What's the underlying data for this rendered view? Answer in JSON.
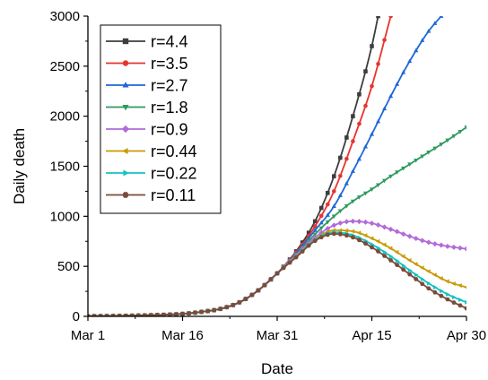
{
  "chart_data": {
    "type": "line",
    "xlabel": "Date",
    "ylabel": "Daily death",
    "x_tick_labels": [
      {
        "value": "2020-03-01",
        "label": "Mar 1"
      },
      {
        "value": "2020-03-16",
        "label": "Mar 16"
      },
      {
        "value": "2020-03-31",
        "label": "Mar 31"
      },
      {
        "value": "2020-04-15",
        "label": "Apr 15"
      },
      {
        "value": "2020-04-30",
        "label": "Apr 30"
      }
    ],
    "xlim": [
      "2020-03-01",
      "2020-04-30"
    ],
    "y_ticks": [
      0,
      500,
      1000,
      1500,
      2000,
      2500,
      3000
    ],
    "ylim": [
      0,
      3000
    ],
    "legend_position": "top-left",
    "grid": false,
    "shared_history": [
      {
        "x": "2020-03-01",
        "y": 2
      },
      {
        "x": "2020-03-06",
        "y": 5
      },
      {
        "x": "2020-03-11",
        "y": 12
      },
      {
        "x": "2020-03-16",
        "y": 25
      },
      {
        "x": "2020-03-19",
        "y": 45
      },
      {
        "x": "2020-03-22",
        "y": 75
      },
      {
        "x": "2020-03-25",
        "y": 140
      },
      {
        "x": "2020-03-28",
        "y": 260
      },
      {
        "x": "2020-03-31",
        "y": 430
      }
    ],
    "series": [
      {
        "name": "r=4.4",
        "color": "#3d3d3d",
        "marker": "square",
        "points": [
          {
            "x": "2020-04-03",
            "y": 650
          },
          {
            "x": "2020-04-06",
            "y": 950
          },
          {
            "x": "2020-04-09",
            "y": 1400
          },
          {
            "x": "2020-04-12",
            "y": 2000
          },
          {
            "x": "2020-04-15",
            "y": 2700
          },
          {
            "x": "2020-04-16",
            "y": 3000
          }
        ]
      },
      {
        "name": "r=3.5",
        "color": "#e8332e",
        "marker": "circle",
        "points": [
          {
            "x": "2020-04-03",
            "y": 640
          },
          {
            "x": "2020-04-06",
            "y": 900
          },
          {
            "x": "2020-04-09",
            "y": 1250
          },
          {
            "x": "2020-04-12",
            "y": 1750
          },
          {
            "x": "2020-04-15",
            "y": 2300
          },
          {
            "x": "2020-04-18",
            "y": 3000
          }
        ]
      },
      {
        "name": "r=2.7",
        "color": "#1f67d6",
        "marker": "triangle-up",
        "points": [
          {
            "x": "2020-04-03",
            "y": 630
          },
          {
            "x": "2020-04-06",
            "y": 860
          },
          {
            "x": "2020-04-09",
            "y": 1100
          },
          {
            "x": "2020-04-12",
            "y": 1450
          },
          {
            "x": "2020-04-15",
            "y": 1820
          },
          {
            "x": "2020-04-18",
            "y": 2200
          },
          {
            "x": "2020-04-21",
            "y": 2550
          },
          {
            "x": "2020-04-24",
            "y": 2850
          },
          {
            "x": "2020-04-26",
            "y": 3000
          }
        ]
      },
      {
        "name": "r=1.8",
        "color": "#2e9a5e",
        "marker": "triangle-down",
        "points": [
          {
            "x": "2020-04-03",
            "y": 620
          },
          {
            "x": "2020-04-06",
            "y": 820
          },
          {
            "x": "2020-04-09",
            "y": 1000
          },
          {
            "x": "2020-04-12",
            "y": 1150
          },
          {
            "x": "2020-04-15",
            "y": 1270
          },
          {
            "x": "2020-04-18",
            "y": 1400
          },
          {
            "x": "2020-04-21",
            "y": 1520
          },
          {
            "x": "2020-04-24",
            "y": 1640
          },
          {
            "x": "2020-04-27",
            "y": 1760
          },
          {
            "x": "2020-04-30",
            "y": 1890
          }
        ]
      },
      {
        "name": "r=0.9",
        "color": "#b36bd9",
        "marker": "diamond",
        "points": [
          {
            "x": "2020-04-03",
            "y": 610
          },
          {
            "x": "2020-04-06",
            "y": 790
          },
          {
            "x": "2020-04-09",
            "y": 910
          },
          {
            "x": "2020-04-12",
            "y": 950
          },
          {
            "x": "2020-04-15",
            "y": 930
          },
          {
            "x": "2020-04-18",
            "y": 870
          },
          {
            "x": "2020-04-21",
            "y": 800
          },
          {
            "x": "2020-04-24",
            "y": 740
          },
          {
            "x": "2020-04-27",
            "y": 700
          },
          {
            "x": "2020-04-30",
            "y": 675
          }
        ]
      },
      {
        "name": "r=0.44",
        "color": "#c99a06",
        "marker": "triangle-left",
        "points": [
          {
            "x": "2020-04-03",
            "y": 600
          },
          {
            "x": "2020-04-06",
            "y": 770
          },
          {
            "x": "2020-04-09",
            "y": 860
          },
          {
            "x": "2020-04-12",
            "y": 850
          },
          {
            "x": "2020-04-15",
            "y": 780
          },
          {
            "x": "2020-04-18",
            "y": 680
          },
          {
            "x": "2020-04-21",
            "y": 560
          },
          {
            "x": "2020-04-24",
            "y": 450
          },
          {
            "x": "2020-04-27",
            "y": 350
          },
          {
            "x": "2020-04-30",
            "y": 290
          }
        ]
      },
      {
        "name": "r=0.22",
        "color": "#14c2c2",
        "marker": "triangle-right",
        "points": [
          {
            "x": "2020-04-03",
            "y": 595
          },
          {
            "x": "2020-04-06",
            "y": 765
          },
          {
            "x": "2020-04-09",
            "y": 840
          },
          {
            "x": "2020-04-12",
            "y": 810
          },
          {
            "x": "2020-04-15",
            "y": 720
          },
          {
            "x": "2020-04-18",
            "y": 600
          },
          {
            "x": "2020-04-21",
            "y": 460
          },
          {
            "x": "2020-04-24",
            "y": 330
          },
          {
            "x": "2020-04-27",
            "y": 220
          },
          {
            "x": "2020-04-30",
            "y": 140
          }
        ]
      },
      {
        "name": "r=0.11",
        "color": "#7a4b3a",
        "marker": "hexagon",
        "points": [
          {
            "x": "2020-04-03",
            "y": 590
          },
          {
            "x": "2020-04-06",
            "y": 755
          },
          {
            "x": "2020-04-09",
            "y": 825
          },
          {
            "x": "2020-04-12",
            "y": 790
          },
          {
            "x": "2020-04-15",
            "y": 690
          },
          {
            "x": "2020-04-18",
            "y": 560
          },
          {
            "x": "2020-04-21",
            "y": 420
          },
          {
            "x": "2020-04-24",
            "y": 280
          },
          {
            "x": "2020-04-27",
            "y": 170
          },
          {
            "x": "2020-04-30",
            "y": 80
          }
        ]
      }
    ]
  }
}
